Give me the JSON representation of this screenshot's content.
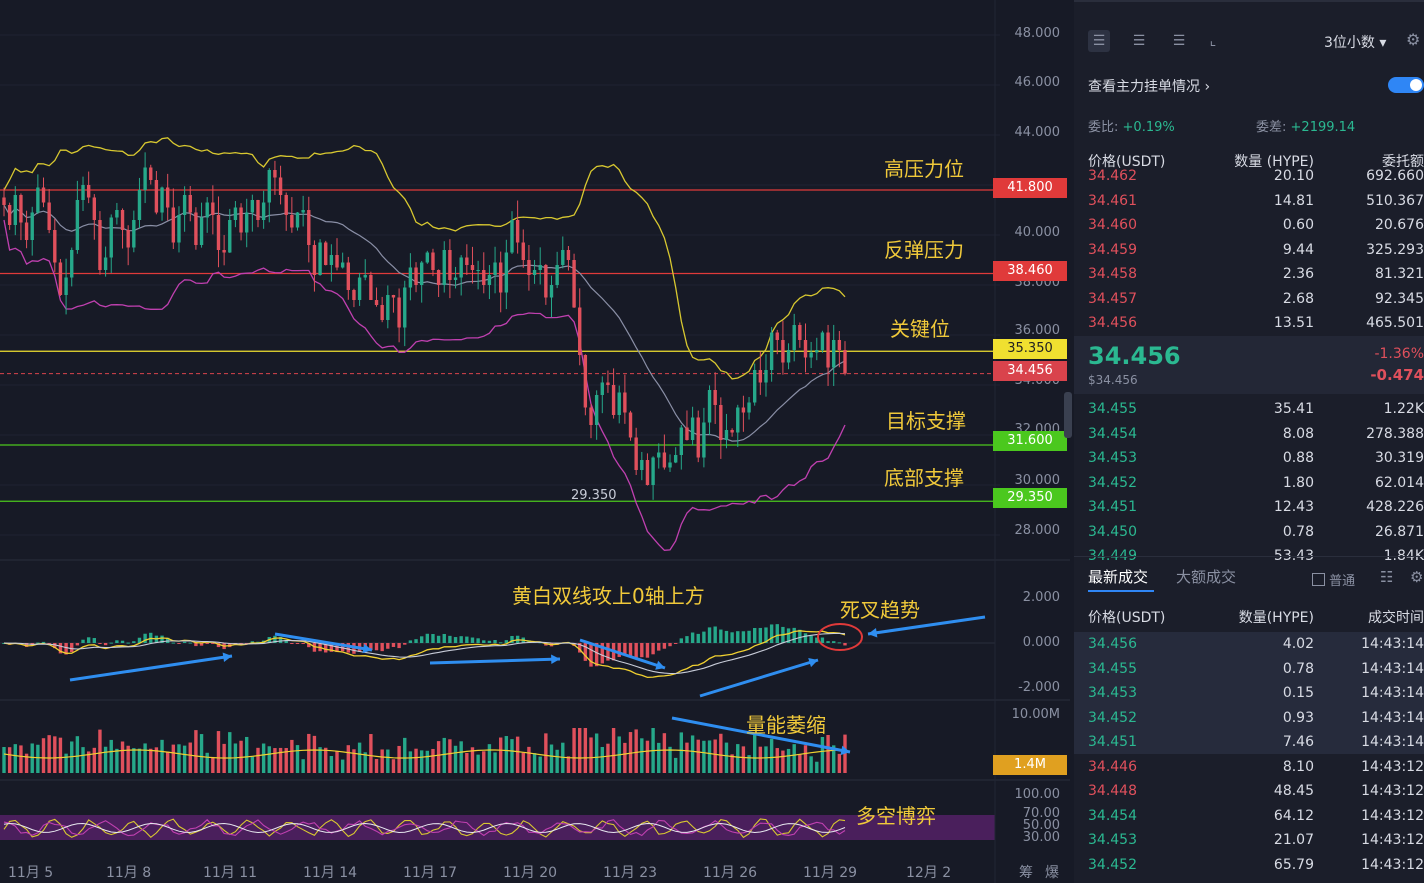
{
  "chart_data": [
    {
      "type": "candlestick",
      "pair": "HYPE/USDT",
      "y_axis_ticks": [
        "48.000",
        "46.000",
        "44.000",
        "42.000",
        "40.000",
        "38.000",
        "36.000",
        "34.000",
        "32.000",
        "30.000",
        "28.000"
      ],
      "ylim": [
        27.3,
        48.6
      ],
      "x_axis_ticks": [
        "11月 5",
        "11月 8",
        "11月 11",
        "11月 14",
        "11月 17",
        "11月 20",
        "11月 23",
        "11月 26",
        "11月 29",
        "12月 2"
      ],
      "x_axis_tail": [
        "筹",
        "爆"
      ],
      "close_series": [
        41.2,
        40.4,
        41.6,
        40.5,
        39.8,
        40.9,
        41.9,
        41.3,
        40.2,
        38.9,
        37.6,
        38.3,
        39.4,
        41.4,
        42.0,
        41.5,
        40.6,
        38.6,
        39.1,
        40.7,
        41.0,
        40.2,
        39.5,
        40.6,
        41.8,
        42.7,
        42.2,
        40.9,
        41.9,
        41.1,
        39.7,
        40.8,
        41.6,
        40.9,
        39.6,
        40.7,
        41.3,
        40.8,
        39.4,
        39.3,
        40.6,
        41.1,
        40.1,
        40.9,
        41.4,
        40.6,
        41.3,
        42.6,
        42.3,
        41.6,
        40.8,
        40.3,
        40.9,
        41.0,
        39.6,
        38.4,
        39.7,
        38.8,
        39.2,
        38.7,
        38.9,
        37.8,
        37.4,
        38.3,
        38.4,
        37.4,
        37.2,
        36.6,
        37.6,
        37.5,
        36.3,
        37.9,
        38.7,
        38.0,
        38.9,
        39.3,
        38.6,
        38.0,
        39.4,
        38.2,
        38.3,
        39.1,
        38.8,
        38.6,
        38.6,
        38.0,
        38.4,
        38.9,
        37.7,
        39.3,
        40.6,
        39.7,
        39.0,
        38.4,
        38.6,
        38.8,
        37.5,
        38.0,
        38.8,
        39.4,
        39.0,
        37.1,
        35.2,
        33.1,
        32.4,
        33.6,
        34.1,
        34.0,
        32.8,
        33.7,
        32.9,
        31.9,
        30.6,
        31.0,
        30.0,
        31.1,
        31.3,
        30.7,
        30.9,
        31.2,
        32.3,
        31.8,
        32.7,
        31.1,
        32.5,
        33.8,
        33.2,
        31.8,
        32.2,
        32.1,
        33.1,
        32.9,
        33.3,
        34.6,
        34.1,
        34.6,
        36.1,
        35.8,
        34.9,
        35.4,
        36.4,
        35.8,
        35.1,
        35.3,
        35.4,
        36.1,
        34.7,
        35.8,
        35.4,
        34.456
      ],
      "levels": [
        {
          "label": "高压力位",
          "price": "41.800",
          "color": "#e03a3a"
        },
        {
          "label": "反弹压力",
          "price": "38.460",
          "color": "#e03a3a"
        },
        {
          "label": "关键位",
          "price": "35.350",
          "color": "#f0e030"
        },
        {
          "label": "目标支撑",
          "price": "31.600",
          "color": "#4bc81e"
        },
        {
          "label": "底部支撑",
          "price": "29.350",
          "color": "#4bc81e"
        }
      ],
      "current_price_tag": "34.456",
      "low_marker": "29.350",
      "indicators": [
        "布林带 BOLL"
      ]
    },
    {
      "type": "bar",
      "name": "MACD",
      "y_axis_ticks": [
        "2.000",
        "0.000",
        "-2.000"
      ],
      "annotation_main": "黄白双线攻上0轴上方",
      "annotation_cross": "死叉趋势"
    },
    {
      "type": "bar",
      "name": "Volume",
      "y_axis_ticks": [
        "10.00M"
      ],
      "current_value_tag": "1.4M",
      "annotation": "量能萎缩"
    },
    {
      "type": "line",
      "name": "Oscillator",
      "y_axis_ticks": [
        "100.00",
        "70.00",
        "50.00",
        "30.00"
      ],
      "annotation": "多空博弈"
    }
  ],
  "panel": {
    "decimal_select": "3位小数",
    "depth_link": "查看主力挂单情况",
    "ratio_label": "委比:",
    "ratio_value": "+0.19%",
    "diff_label": "委差:",
    "diff_value": "+2199.14",
    "book_headers": [
      "价格(USDT)",
      "数量 (HYPE)",
      "委托额"
    ],
    "asks": [
      {
        "price": "34.462",
        "qty": "20.10",
        "amt": "692.660"
      },
      {
        "price": "34.461",
        "qty": "14.81",
        "amt": "510.367"
      },
      {
        "price": "34.460",
        "qty": "0.60",
        "amt": "20.676"
      },
      {
        "price": "34.459",
        "qty": "9.44",
        "amt": "325.293"
      },
      {
        "price": "34.458",
        "qty": "2.36",
        "amt": "81.321"
      },
      {
        "price": "34.457",
        "qty": "2.68",
        "amt": "92.345"
      },
      {
        "price": "34.456",
        "qty": "13.51",
        "amt": "465.501"
      }
    ],
    "last_price": "34.456",
    "last_price_usd": "$34.456",
    "change_pct": "-1.36%",
    "change_abs": "-0.474",
    "bids": [
      {
        "price": "34.455",
        "qty": "35.41",
        "amt": "1.22K"
      },
      {
        "price": "34.454",
        "qty": "8.08",
        "amt": "278.388"
      },
      {
        "price": "34.453",
        "qty": "0.88",
        "amt": "30.319"
      },
      {
        "price": "34.452",
        "qty": "1.80",
        "amt": "62.014"
      },
      {
        "price": "34.451",
        "qty": "12.43",
        "amt": "428.226"
      },
      {
        "price": "34.450",
        "qty": "0.78",
        "amt": "26.871"
      },
      {
        "price": "34.449",
        "qty": "53.43",
        "amt": "1.84K"
      }
    ],
    "trade_tabs": [
      "最新成交",
      "大额成交"
    ],
    "trade_filter": "普通",
    "trade_headers": [
      "价格(USDT)",
      "数量(HYPE)",
      "成交时间"
    ],
    "trades": [
      {
        "price": "34.456",
        "qty": "4.02",
        "time": "14:43:14",
        "side": "buy"
      },
      {
        "price": "34.455",
        "qty": "0.78",
        "time": "14:43:14",
        "side": "buy"
      },
      {
        "price": "34.453",
        "qty": "0.15",
        "time": "14:43:14",
        "side": "buy"
      },
      {
        "price": "34.452",
        "qty": "0.93",
        "time": "14:43:14",
        "side": "buy"
      },
      {
        "price": "34.451",
        "qty": "7.46",
        "time": "14:43:14",
        "side": "buy"
      },
      {
        "price": "34.446",
        "qty": "8.10",
        "time": "14:43:12",
        "side": "sell"
      },
      {
        "price": "34.448",
        "qty": "48.45",
        "time": "14:43:12",
        "side": "sell"
      },
      {
        "price": "34.454",
        "qty": "64.12",
        "time": "14:43:12",
        "side": "buy"
      },
      {
        "price": "34.453",
        "qty": "21.07",
        "time": "14:43:12",
        "side": "buy"
      },
      {
        "price": "34.452",
        "qty": "65.79",
        "time": "14:43:12",
        "side": "buy"
      }
    ]
  }
}
